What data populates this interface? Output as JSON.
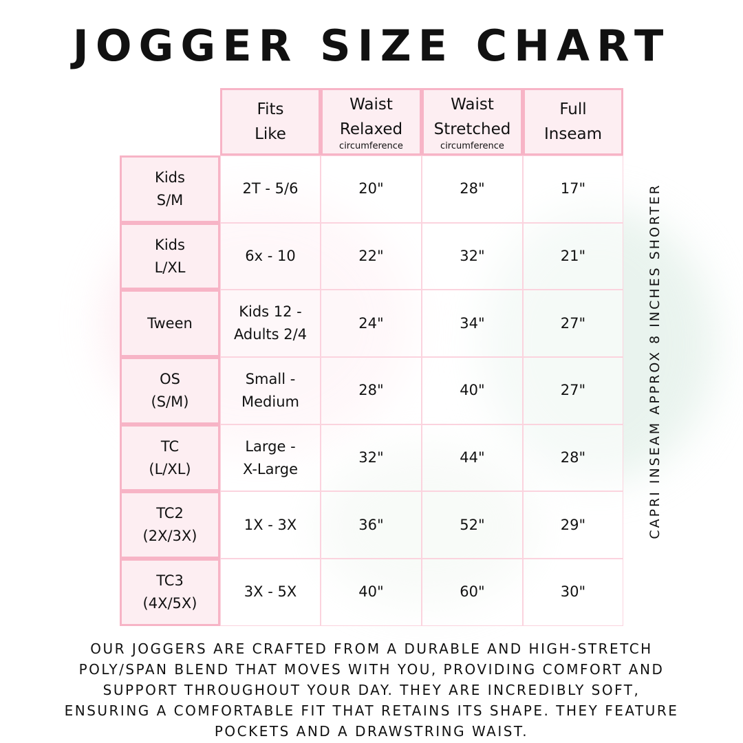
{
  "title": "JOGGER SIZE CHART",
  "columns": [
    {
      "line1": "Fits",
      "line2": "Like",
      "sub": ""
    },
    {
      "line1": "Waist",
      "line2": "Relaxed",
      "sub": "circumference"
    },
    {
      "line1": "Waist",
      "line2": "Stretched",
      "sub": "circumference"
    },
    {
      "line1": "Full",
      "line2": "Inseam",
      "sub": ""
    }
  ],
  "rows": [
    {
      "size": [
        "Kids",
        "S/M"
      ],
      "fits": [
        "2T - 5/6"
      ],
      "relaxed": "20\"",
      "stretched": "28\"",
      "inseam": "17\""
    },
    {
      "size": [
        "Kids",
        "L/XL"
      ],
      "fits": [
        "6x - 10"
      ],
      "relaxed": "22\"",
      "stretched": "32\"",
      "inseam": "21\""
    },
    {
      "size": [
        "Tween"
      ],
      "fits": [
        "Kids 12 -",
        "Adults 2/4"
      ],
      "relaxed": "24\"",
      "stretched": "34\"",
      "inseam": "27\""
    },
    {
      "size": [
        "OS",
        "(S/M)"
      ],
      "fits": [
        "Small -",
        "Medium"
      ],
      "relaxed": "28\"",
      "stretched": "40\"",
      "inseam": "27\""
    },
    {
      "size": [
        "TC",
        "(L/XL)"
      ],
      "fits": [
        "Large -",
        "X-Large"
      ],
      "relaxed": "32\"",
      "stretched": "44\"",
      "inseam": "28\""
    },
    {
      "size": [
        "TC2",
        "(2X/3X)"
      ],
      "fits": [
        "1X - 3X"
      ],
      "relaxed": "36\"",
      "stretched": "52\"",
      "inseam": "29\""
    },
    {
      "size": [
        "TC3",
        "(4X/5X)"
      ],
      "fits": [
        "3X - 5X"
      ],
      "relaxed": "40\"",
      "stretched": "60\"",
      "inseam": "30\""
    }
  ],
  "side_note": "CAPRI INSEAM APPROX 8 INCHES SHORTER",
  "footer_lines": [
    "OUR JOGGERS ARE CRAFTED FROM A DURABLE AND HIGH-STRETCH",
    "POLY/SPAN BLEND THAT MOVES WITH YOU, PROVIDING COMFORT AND",
    "SUPPORT THROUGHOUT YOUR DAY. THEY ARE INCREDIBLY SOFT,",
    "ENSURING A COMFORTABLE FIT THAT RETAINS ITS SHAPE. THEY FEATURE",
    "POCKETS AND A DRAWSTRING WAIST."
  ],
  "colors": {
    "border": "#f7b4c6",
    "header_bg": "#fdeef2"
  }
}
